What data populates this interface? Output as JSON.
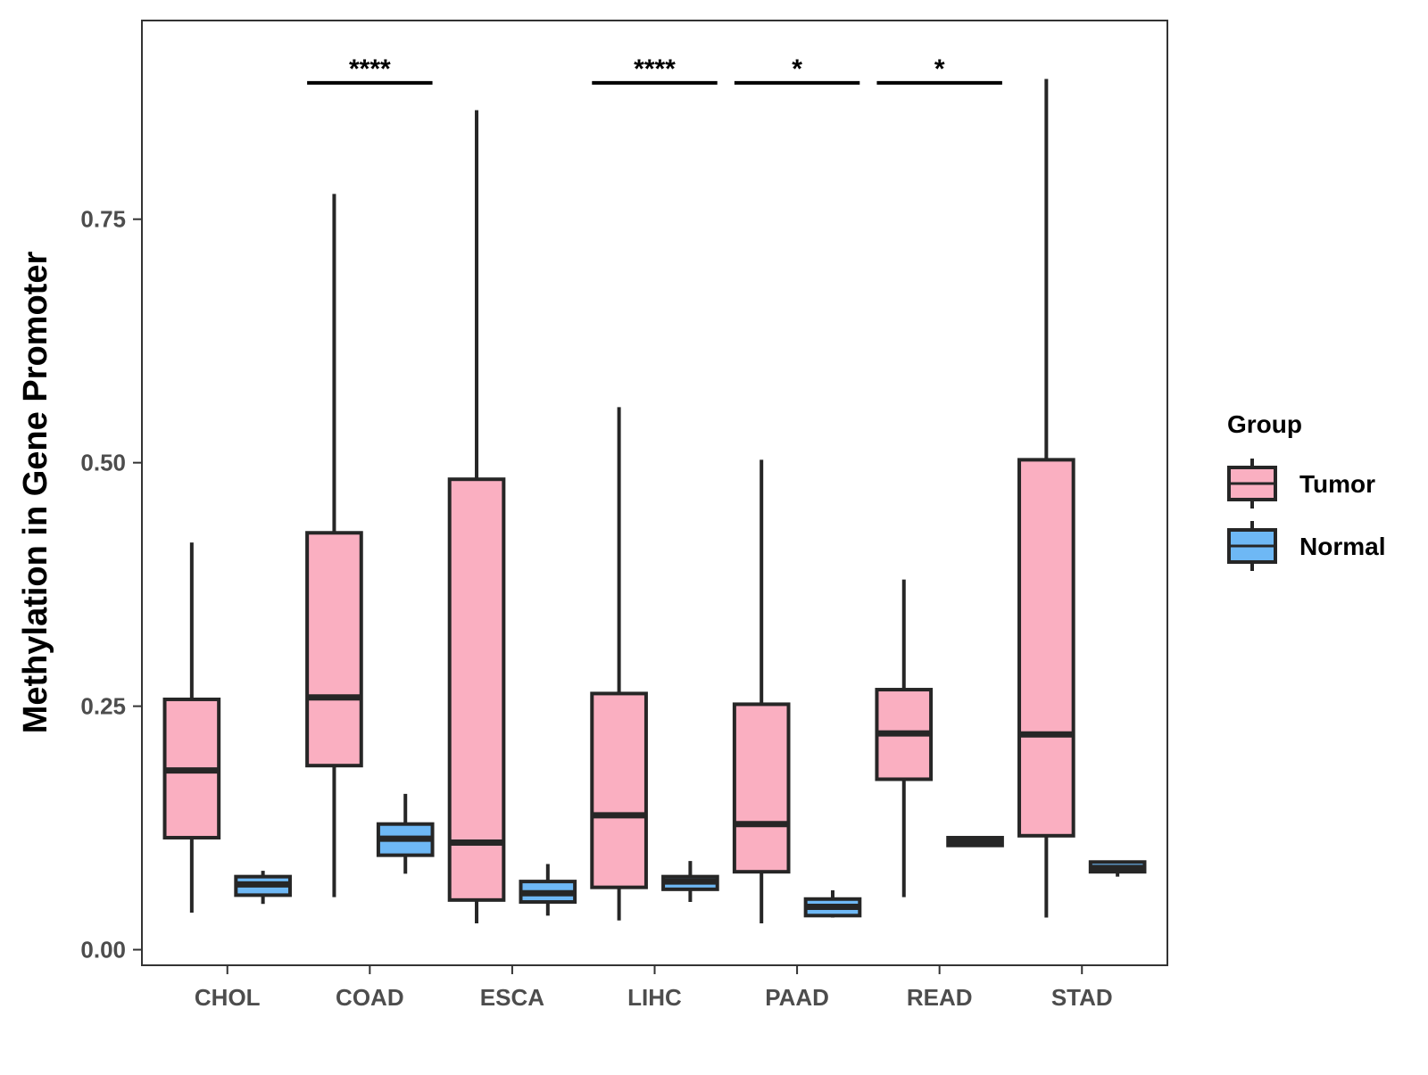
{
  "chart_data": {
    "type": "boxplot",
    "title": "",
    "xlabel": "",
    "ylabel": "Methylation in Gene Promoter",
    "ylim": [
      -0.016,
      0.954
    ],
    "y_ticks": [
      0.0,
      0.25,
      0.5,
      0.75
    ],
    "y_tick_labels": [
      "0.00",
      "0.25",
      "0.50",
      "0.75"
    ],
    "grid": false,
    "legend": {
      "title": "Group",
      "position": "right"
    },
    "categories": [
      "CHOL",
      "COAD",
      "ESCA",
      "LIHC",
      "PAAD",
      "READ",
      "STAD"
    ],
    "series": [
      {
        "name": "Tumor",
        "color": "#FAAFC1",
        "boxes": [
          {
            "min": 0.038,
            "q1": 0.115,
            "median": 0.184,
            "q3": 0.257,
            "max": 0.418
          },
          {
            "min": 0.054,
            "q1": 0.189,
            "median": 0.259,
            "q3": 0.428,
            "max": 0.776
          },
          {
            "min": 0.027,
            "q1": 0.051,
            "median": 0.11,
            "q3": 0.483,
            "max": 0.862
          },
          {
            "min": 0.03,
            "q1": 0.064,
            "median": 0.138,
            "q3": 0.263,
            "max": 0.557
          },
          {
            "min": 0.027,
            "q1": 0.08,
            "median": 0.129,
            "q3": 0.252,
            "max": 0.503
          },
          {
            "min": 0.054,
            "q1": 0.175,
            "median": 0.222,
            "q3": 0.267,
            "max": 0.38
          },
          {
            "min": 0.033,
            "q1": 0.117,
            "median": 0.221,
            "q3": 0.503,
            "max": 0.894
          }
        ]
      },
      {
        "name": "Normal",
        "color": "#6EB8F5",
        "boxes": [
          {
            "min": 0.047,
            "q1": 0.056,
            "median": 0.067,
            "q3": 0.075,
            "max": 0.081
          },
          {
            "min": 0.078,
            "q1": 0.097,
            "median": 0.114,
            "q3": 0.129,
            "max": 0.16
          },
          {
            "min": 0.035,
            "q1": 0.049,
            "median": 0.058,
            "q3": 0.07,
            "max": 0.088
          },
          {
            "min": 0.049,
            "q1": 0.062,
            "median": 0.07,
            "q3": 0.075,
            "max": 0.091
          },
          {
            "min": 0.033,
            "q1": 0.035,
            "median": 0.044,
            "q3": 0.052,
            "max": 0.061
          },
          {
            "min": 0.107,
            "q1": 0.107,
            "median": 0.11,
            "q3": 0.115,
            "max": 0.116
          },
          {
            "min": 0.075,
            "q1": 0.08,
            "median": 0.084,
            "q3": 0.09,
            "max": 0.091
          }
        ]
      }
    ],
    "significance": [
      {
        "category": "COAD",
        "label": "****",
        "y": 0.89
      },
      {
        "category": "LIHC",
        "label": "****",
        "y": 0.89
      },
      {
        "category": "PAAD",
        "label": "*",
        "y": 0.89
      },
      {
        "category": "READ",
        "label": "*",
        "y": 0.89
      }
    ]
  }
}
